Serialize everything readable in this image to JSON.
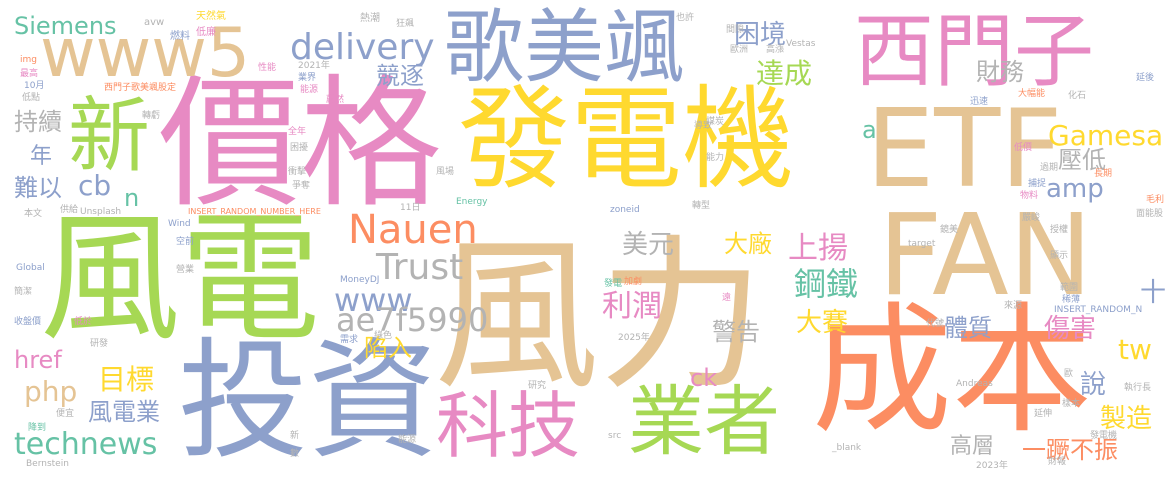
{
  "colors": {
    "gold": "#ffd92f",
    "tan": "#e5c494",
    "green": "#a6d854",
    "pink": "#e78ac3",
    "blue": "#8da0cb",
    "orange": "#fc8d62",
    "teal": "#66c2a5",
    "gray": "#b3b3b3"
  },
  "words": [
    {
      "text": "風力",
      "color": "tan"
    },
    {
      "text": "發電機",
      "color": "gold"
    },
    {
      "text": "價格",
      "color": "pink"
    },
    {
      "text": "風電",
      "color": "green"
    },
    {
      "text": "投資",
      "color": "blue"
    },
    {
      "text": "成本",
      "color": "orange"
    },
    {
      "text": "FAN",
      "color": "tan"
    },
    {
      "text": "ETF",
      "color": "tan"
    },
    {
      "text": "西門子",
      "color": "pink"
    },
    {
      "text": "歌美颯",
      "color": "blue"
    },
    {
      "text": "www5",
      "color": "tan"
    },
    {
      "text": "新",
      "color": "green"
    },
    {
      "text": "業者",
      "color": "green"
    },
    {
      "text": "科技",
      "color": "pink"
    },
    {
      "text": "delivery",
      "color": "blue"
    },
    {
      "text": "Nauen",
      "color": "orange"
    },
    {
      "text": "Trust",
      "color": "gray"
    },
    {
      "text": "www",
      "color": "blue"
    },
    {
      "text": "ae7f5990",
      "color": "gray"
    },
    {
      "text": "Gamesa",
      "color": "gold"
    },
    {
      "text": "technews",
      "color": "teal"
    },
    {
      "text": "Siemens",
      "color": "teal"
    },
    {
      "text": "困境",
      "color": "blue"
    },
    {
      "text": "達成",
      "color": "green"
    },
    {
      "text": "競逐",
      "color": "blue"
    },
    {
      "text": "財務",
      "color": "gray"
    },
    {
      "text": "持續",
      "color": "gray"
    },
    {
      "text": "年",
      "color": "blue"
    },
    {
      "text": "難以",
      "color": "blue"
    },
    {
      "text": "cb",
      "color": "blue"
    },
    {
      "text": "n",
      "color": "teal"
    },
    {
      "text": "a",
      "color": "teal"
    },
    {
      "text": "amp",
      "color": "blue"
    },
    {
      "text": "壓低",
      "color": "gray"
    },
    {
      "text": "美元",
      "color": "gray"
    },
    {
      "text": "大廠",
      "color": "gold"
    },
    {
      "text": "上揚",
      "color": "pink"
    },
    {
      "text": "鋼鐵",
      "color": "teal"
    },
    {
      "text": "利潤",
      "color": "pink"
    },
    {
      "text": "大賽",
      "color": "gold"
    },
    {
      "text": "體質",
      "color": "blue"
    },
    {
      "text": "傷害",
      "color": "pink"
    },
    {
      "text": "警告",
      "color": "gray"
    },
    {
      "text": "陷入",
      "color": "gold"
    },
    {
      "text": "目標",
      "color": "gold"
    },
    {
      "text": "php",
      "color": "tan"
    },
    {
      "text": "href",
      "color": "pink"
    },
    {
      "text": "ck",
      "color": "pink"
    },
    {
      "text": "風電業",
      "color": "blue"
    },
    {
      "text": "說",
      "color": "blue"
    },
    {
      "text": "製造",
      "color": "gold"
    },
    {
      "text": "tw",
      "color": "gold"
    },
    {
      "text": "一蹶不振",
      "color": "orange"
    },
    {
      "text": "高層",
      "color": "gray"
    },
    {
      "text": "十",
      "color": "blue"
    },
    {
      "text": "avw",
      "color": "gray"
    },
    {
      "text": "天然氣",
      "color": "gold"
    },
    {
      "text": "熱潮",
      "color": "gray"
    },
    {
      "text": "狂飆",
      "color": "gray"
    },
    {
      "text": "也許",
      "color": "gray"
    },
    {
      "text": "燃料",
      "color": "blue"
    },
    {
      "text": "低廉",
      "color": "pink"
    },
    {
      "text": "img",
      "color": "orange"
    },
    {
      "text": "最高",
      "color": "pink"
    },
    {
      "text": "10月",
      "color": "blue"
    },
    {
      "text": "低點",
      "color": "gray"
    },
    {
      "text": "西門子歌美颯股定",
      "color": "orange"
    },
    {
      "text": "性能",
      "color": "pink"
    },
    {
      "text": "2021年",
      "color": "gray"
    },
    {
      "text": "業界",
      "color": "blue"
    },
    {
      "text": "能源",
      "color": "pink"
    },
    {
      "text": "間隙",
      "color": "gray"
    },
    {
      "text": "歐洲",
      "color": "gray"
    },
    {
      "text": "轉虧",
      "color": "gray"
    },
    {
      "text": "Vestas",
      "color": "gray"
    },
    {
      "text": "高漲",
      "color": "gray"
    },
    {
      "text": "大幅能",
      "color": "orange"
    },
    {
      "text": "迅速",
      "color": "blue"
    },
    {
      "text": "化石",
      "color": "gray"
    },
    {
      "text": "延後",
      "color": "blue"
    },
    {
      "text": "全年",
      "color": "pink"
    },
    {
      "text": "困擾",
      "color": "gray"
    },
    {
      "text": "衝擊",
      "color": "gray"
    },
    {
      "text": "爭奪",
      "color": "gray"
    },
    {
      "text": "蔚然",
      "color": "pink"
    },
    {
      "text": "導致",
      "color": "gray"
    },
    {
      "text": "煤炭",
      "color": "gray"
    },
    {
      "text": "能力",
      "color": "gray"
    },
    {
      "text": "風場",
      "color": "gray"
    },
    {
      "text": "過期",
      "color": "gray"
    },
    {
      "text": "低價",
      "color": "pink"
    },
    {
      "text": "長期",
      "color": "orange"
    },
    {
      "text": "毛利",
      "color": "orange"
    },
    {
      "text": "捕捉",
      "color": "blue"
    },
    {
      "text": "物料",
      "color": "pink"
    },
    {
      "text": "本文",
      "color": "gray"
    },
    {
      "text": "供給",
      "color": "gray"
    },
    {
      "text": "Unsplash",
      "color": "gray"
    },
    {
      "text": "Wind",
      "color": "blue"
    },
    {
      "text": "INSERT_RANDOM_NUMBER_HERE",
      "color": "orange"
    },
    {
      "text": "11日",
      "color": "gray"
    },
    {
      "text": "Energy",
      "color": "teal"
    },
    {
      "text": "zoneid",
      "color": "blue"
    },
    {
      "text": "轉型",
      "color": "gray"
    },
    {
      "text": "嚴峻",
      "color": "gray"
    },
    {
      "text": "面能股",
      "color": "gray"
    },
    {
      "text": "空前",
      "color": "blue"
    },
    {
      "text": "Global",
      "color": "blue"
    },
    {
      "text": "營業",
      "color": "gray"
    },
    {
      "text": "簡潔",
      "color": "gray"
    },
    {
      "text": "MoneyDJ",
      "color": "blue"
    },
    {
      "text": "target",
      "color": "gray"
    },
    {
      "text": "鏡美",
      "color": "gray"
    },
    {
      "text": "授權",
      "color": "gray"
    },
    {
      "text": "顯示",
      "color": "gray"
    },
    {
      "text": "加劇",
      "color": "orange"
    },
    {
      "text": "發電",
      "color": "teal"
    },
    {
      "text": "範圍",
      "color": "gray"
    },
    {
      "text": "稀薄",
      "color": "blue"
    },
    {
      "text": "INSERT_RANDOM_N",
      "color": "blue"
    },
    {
      "text": "收盤價",
      "color": "blue"
    },
    {
      "text": "低於",
      "color": "pink"
    },
    {
      "text": "研發",
      "color": "gray"
    },
    {
      "text": "需求",
      "color": "blue"
    },
    {
      "text": "綠色",
      "color": "gray"
    },
    {
      "text": "2025年",
      "color": "gray"
    },
    {
      "text": "遠",
      "color": "pink"
    },
    {
      "text": "來源",
      "color": "gray"
    },
    {
      "text": "代號",
      "color": "gray"
    },
    {
      "text": "研究",
      "color": "gray"
    },
    {
      "text": "Andreas",
      "color": "gray"
    },
    {
      "text": "執行長",
      "color": "gray"
    },
    {
      "text": "便宜",
      "color": "gray"
    },
    {
      "text": "樣本",
      "color": "gray"
    },
    {
      "text": "歐",
      "color": "gray"
    },
    {
      "text": "降到",
      "color": "teal"
    },
    {
      "text": "Bernstein",
      "color": "gray"
    },
    {
      "text": "能源",
      "color": "gray"
    },
    {
      "text": "src",
      "color": "gray"
    },
    {
      "text": "_blank",
      "color": "gray"
    },
    {
      "text": "延伸",
      "color": "gray"
    },
    {
      "text": "發電機",
      "color": "gray"
    },
    {
      "text": "2023年",
      "color": "gray"
    },
    {
      "text": "財報",
      "color": "gray"
    },
    {
      "text": "新",
      "color": "gray"
    },
    {
      "text": "數",
      "color": "gray"
    }
  ]
}
